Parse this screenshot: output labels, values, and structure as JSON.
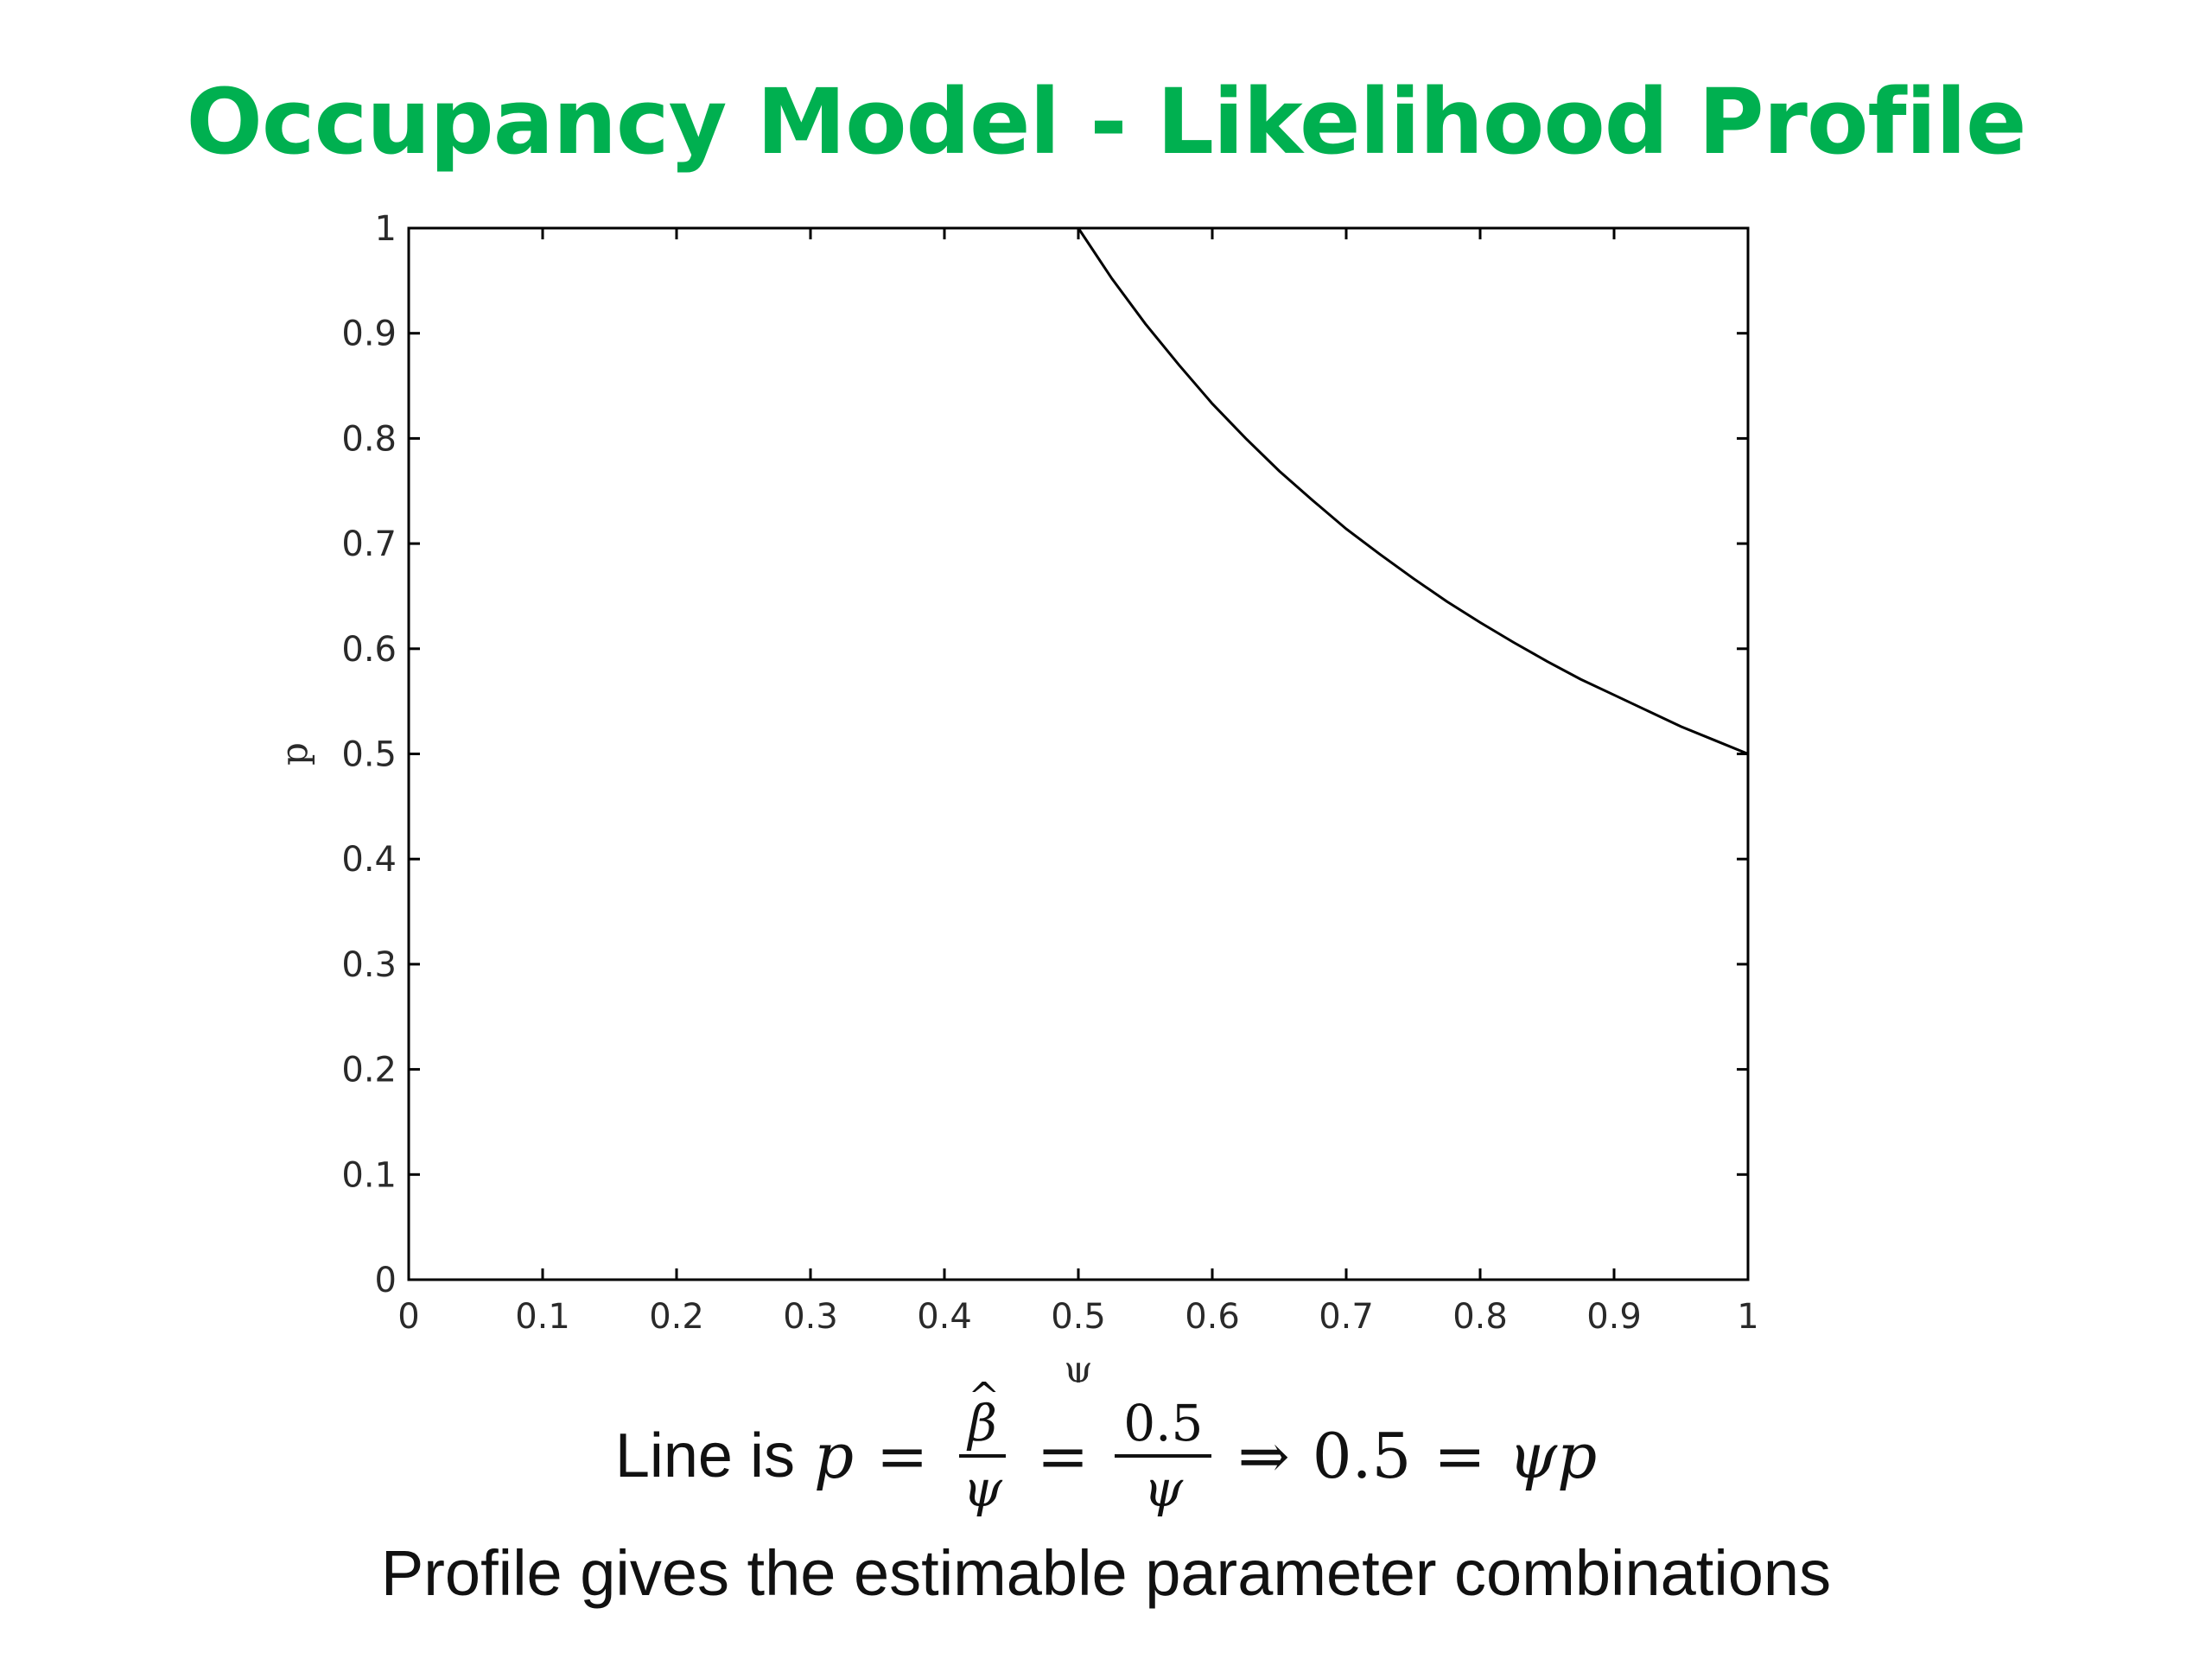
{
  "slide": {
    "title": "Occupancy Model - Likelihood Profile",
    "equation_prefix": "Line is",
    "equation": {
      "p": "p",
      "eq": "=",
      "beta": "β",
      "hat": "^",
      "psi": "ψ",
      "half": "0.5",
      "implies": "⇒",
      "psip": "ψp"
    },
    "caption": "Profile gives the estimable parameter combinations"
  },
  "chart_data": {
    "type": "line",
    "title": "",
    "xlabel": "ψ",
    "ylabel": "p",
    "xlim": [
      0,
      1
    ],
    "ylim": [
      0,
      1
    ],
    "xticks": [
      "0",
      "0.1",
      "0.2",
      "0.3",
      "0.4",
      "0.5",
      "0.6",
      "0.7",
      "0.8",
      "0.9",
      "1"
    ],
    "yticks": [
      "0",
      "0.1",
      "0.2",
      "0.3",
      "0.4",
      "0.5",
      "0.6",
      "0.7",
      "0.8",
      "0.9",
      "1"
    ],
    "grid": false,
    "series": [
      {
        "x": [
          0.5,
          0.525,
          0.55,
          0.575,
          0.6,
          0.625,
          0.65,
          0.675,
          0.7,
          0.725,
          0.75,
          0.775,
          0.8,
          0.825,
          0.85,
          0.875,
          0.9,
          0.925,
          0.95,
          0.975,
          1.0
        ],
        "y": [
          1.0,
          0.952,
          0.909,
          0.87,
          0.833,
          0.8,
          0.769,
          0.741,
          0.714,
          0.69,
          0.667,
          0.645,
          0.625,
          0.606,
          0.588,
          0.571,
          0.556,
          0.541,
          0.526,
          0.513,
          0.5
        ],
        "color": "#000000"
      }
    ]
  }
}
